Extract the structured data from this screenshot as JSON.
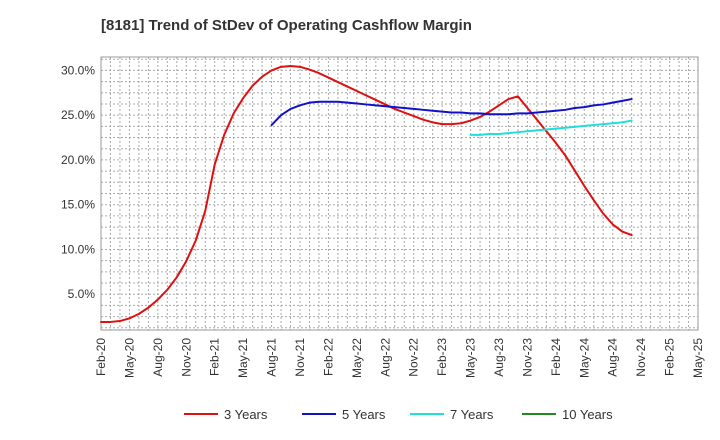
{
  "chart_data": {
    "type": "line",
    "title": "[8181]  Trend of StDev of Operating Cashflow Margin",
    "xlabel": "",
    "ylabel": "",
    "x_ticks": [
      "Feb-20",
      "May-20",
      "Aug-20",
      "Nov-20",
      "Feb-21",
      "May-21",
      "Aug-21",
      "Nov-21",
      "Feb-22",
      "May-22",
      "Aug-22",
      "Nov-22",
      "Feb-23",
      "May-23",
      "Aug-23",
      "Nov-23",
      "Feb-24",
      "May-24",
      "Aug-24",
      "Nov-24",
      "Feb-25",
      "May-25"
    ],
    "y_ticks": [
      "5.0%",
      "10.0%",
      "15.0%",
      "20.0%",
      "25.0%",
      "30.0%"
    ],
    "y_tick_values": [
      5,
      10,
      15,
      20,
      25,
      30
    ],
    "ylim": [
      1,
      31.5
    ],
    "grid": true,
    "legend_position": "bottom",
    "series": [
      {
        "name": "3 Years",
        "color": "#dd1111",
        "points": [
          [
            0,
            1.9
          ],
          [
            1,
            1.9
          ],
          [
            2,
            2.0
          ],
          [
            3,
            2.3
          ],
          [
            4,
            2.8
          ],
          [
            5,
            3.5
          ],
          [
            6,
            4.4
          ],
          [
            7,
            5.5
          ],
          [
            8,
            6.9
          ],
          [
            9,
            8.7
          ],
          [
            10,
            11.0
          ],
          [
            11,
            14.3
          ],
          [
            12,
            19.5
          ],
          [
            13,
            22.8
          ],
          [
            14,
            25.2
          ],
          [
            15,
            26.9
          ],
          [
            16,
            28.3
          ],
          [
            17,
            29.3
          ],
          [
            18,
            30.0
          ],
          [
            19,
            30.4
          ],
          [
            20,
            30.5
          ],
          [
            21,
            30.4
          ],
          [
            22,
            30.1
          ],
          [
            23,
            29.7
          ],
          [
            24,
            29.2
          ],
          [
            25,
            28.7
          ],
          [
            26,
            28.2
          ],
          [
            27,
            27.7
          ],
          [
            28,
            27.2
          ],
          [
            29,
            26.7
          ],
          [
            30,
            26.2
          ],
          [
            31,
            25.7
          ],
          [
            32,
            25.3
          ],
          [
            33,
            24.9
          ],
          [
            34,
            24.5
          ],
          [
            35,
            24.2
          ],
          [
            36,
            24.0
          ],
          [
            37,
            24.0
          ],
          [
            38,
            24.1
          ],
          [
            39,
            24.4
          ],
          [
            40,
            24.8
          ],
          [
            41,
            25.4
          ],
          [
            42,
            26.1
          ],
          [
            43,
            26.8
          ],
          [
            44,
            27.1
          ],
          [
            45,
            25.8
          ],
          [
            46,
            24.5
          ],
          [
            47,
            23.2
          ],
          [
            48,
            21.9
          ],
          [
            49,
            20.5
          ],
          [
            50,
            18.8
          ],
          [
            51,
            17.1
          ],
          [
            52,
            15.5
          ],
          [
            53,
            14.0
          ],
          [
            54,
            12.8
          ],
          [
            55,
            12.0
          ],
          [
            56,
            11.6
          ]
        ]
      },
      {
        "name": "5 Years",
        "color": "#1111cc",
        "points": [
          [
            18,
            23.9
          ],
          [
            19,
            25.0
          ],
          [
            20,
            25.7
          ],
          [
            21,
            26.1
          ],
          [
            22,
            26.4
          ],
          [
            23,
            26.5
          ],
          [
            24,
            26.5
          ],
          [
            25,
            26.5
          ],
          [
            26,
            26.4
          ],
          [
            27,
            26.3
          ],
          [
            28,
            26.2
          ],
          [
            29,
            26.1
          ],
          [
            30,
            26.0
          ],
          [
            31,
            25.9
          ],
          [
            32,
            25.8
          ],
          [
            33,
            25.7
          ],
          [
            34,
            25.6
          ],
          [
            35,
            25.5
          ],
          [
            36,
            25.4
          ],
          [
            37,
            25.3
          ],
          [
            38,
            25.3
          ],
          [
            39,
            25.2
          ],
          [
            40,
            25.2
          ],
          [
            41,
            25.1
          ],
          [
            42,
            25.1
          ],
          [
            43,
            25.1
          ],
          [
            44,
            25.2
          ],
          [
            45,
            25.2
          ],
          [
            46,
            25.3
          ],
          [
            47,
            25.4
          ],
          [
            48,
            25.5
          ],
          [
            49,
            25.6
          ],
          [
            50,
            25.8
          ],
          [
            51,
            25.9
          ],
          [
            52,
            26.1
          ],
          [
            53,
            26.2
          ],
          [
            54,
            26.4
          ],
          [
            55,
            26.6
          ],
          [
            56,
            26.8
          ]
        ]
      },
      {
        "name": "7 Years",
        "color": "#22dddd",
        "points": [
          [
            39,
            22.8
          ],
          [
            40,
            22.8
          ],
          [
            41,
            22.9
          ],
          [
            42,
            22.9
          ],
          [
            43,
            23.0
          ],
          [
            44,
            23.1
          ],
          [
            45,
            23.2
          ],
          [
            46,
            23.3
          ],
          [
            47,
            23.4
          ],
          [
            48,
            23.5
          ],
          [
            49,
            23.6
          ],
          [
            50,
            23.7
          ],
          [
            51,
            23.8
          ],
          [
            52,
            23.9
          ],
          [
            53,
            24.0
          ],
          [
            54,
            24.1
          ],
          [
            55,
            24.2
          ],
          [
            56,
            24.4
          ]
        ]
      },
      {
        "name": "10 Years",
        "color": "#228822",
        "points": []
      }
    ]
  }
}
